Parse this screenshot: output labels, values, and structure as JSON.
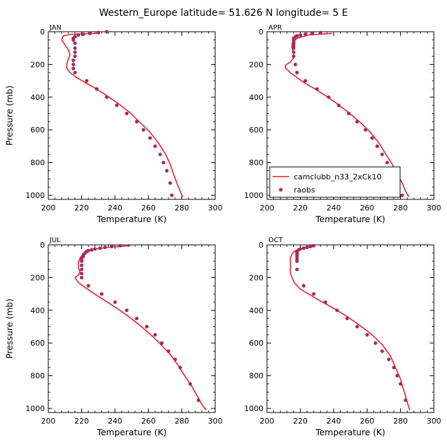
{
  "title": "Western_Europe  latitude= 51.626 N longitude= 5 E",
  "colors": {
    "model": "#e8141c",
    "obs": "#a82a60",
    "axis": "#000000"
  },
  "chart_data": [
    {
      "type": "line",
      "panel_label": "JAN",
      "xlabel": "Temperature (K)",
      "ylabel": "Pressure (mb)",
      "xlim": [
        200,
        300
      ],
      "ylim": [
        1025,
        0
      ],
      "xticks": [
        "200",
        "220",
        "240",
        "260",
        "280",
        "300"
      ],
      "yticks": [
        "0",
        "200",
        "400",
        "600",
        "800",
        "1000"
      ],
      "series": [
        {
          "kind": "line",
          "x": [
            231,
            214,
            209,
            208,
            210,
            212,
            213,
            212,
            211,
            211,
            213,
            217,
            222,
            228,
            235,
            242,
            249,
            255,
            261,
            266,
            270,
            273,
            275,
            277,
            279,
            280.5
          ],
          "y": [
            10,
            15,
            25,
            50,
            80,
            110,
            140,
            170,
            200,
            220,
            250,
            280,
            310,
            345,
            390,
            440,
            495,
            555,
            615,
            680,
            745,
            810,
            870,
            925,
            975,
            1010
          ]
        },
        {
          "kind": "points",
          "x": [
            235,
            230,
            225,
            221,
            218,
            216,
            215,
            215,
            216,
            216,
            216,
            216,
            215,
            215,
            215,
            216,
            223,
            229,
            235,
            241,
            247,
            253,
            257,
            261,
            264,
            267,
            269,
            271,
            273,
            274
          ],
          "y": [
            0,
            5,
            10,
            15,
            20,
            30,
            40,
            50,
            70,
            100,
            125,
            150,
            175,
            200,
            225,
            250,
            300,
            350,
            400,
            450,
            500,
            550,
            600,
            650,
            700,
            750,
            800,
            850,
            925,
            1000
          ]
        }
      ]
    },
    {
      "type": "line",
      "panel_label": "APR",
      "xlabel": "Temperature (K)",
      "ylabel": "",
      "xlim": [
        200,
        300
      ],
      "ylim": [
        1025,
        0
      ],
      "xticks": [
        "200",
        "220",
        "240",
        "260",
        "280",
        "300"
      ],
      "yticks": [
        "0",
        "200",
        "400",
        "600",
        "800",
        "1000"
      ],
      "legend": {
        "position": "lower-left",
        "entries": [
          "camclubb_n33_2xCk10",
          "raobs"
        ]
      },
      "series": [
        {
          "name": "camclubb_n33_2xCk10",
          "kind": "line",
          "x": [
            239,
            225,
            218,
            215,
            215,
            216,
            216,
            214,
            211,
            211,
            214,
            218,
            222,
            228,
            235,
            242,
            249,
            256,
            262,
            267,
            271,
            275,
            278,
            281,
            283,
            285
          ],
          "y": [
            10,
            20,
            40,
            70,
            100,
            130,
            160,
            185,
            205,
            220,
            250,
            280,
            310,
            345,
            390,
            440,
            495,
            555,
            615,
            680,
            745,
            810,
            870,
            925,
            975,
            1010
          ]
        },
        {
          "name": "raobs",
          "kind": "points",
          "x": [
            232,
            227,
            223,
            220,
            218,
            217,
            216,
            216,
            216,
            216,
            216,
            216,
            216,
            216,
            217,
            218,
            223,
            230,
            237,
            243,
            249,
            254,
            259,
            263,
            266,
            269,
            272,
            274,
            278,
            281
          ],
          "y": [
            5,
            10,
            15,
            20,
            25,
            30,
            40,
            50,
            60,
            70,
            85,
            100,
            125,
            150,
            200,
            250,
            300,
            350,
            400,
            450,
            500,
            550,
            600,
            650,
            700,
            750,
            800,
            850,
            925,
            1000
          ]
        }
      ]
    },
    {
      "type": "line",
      "panel_label": "JUL",
      "xlabel": "Temperature (K)",
      "ylabel": "Pressure (mb)",
      "xlim": [
        200,
        300
      ],
      "ylim": [
        1025,
        0
      ],
      "xticks": [
        "200",
        "220",
        "240",
        "260",
        "280",
        "300"
      ],
      "yticks": [
        "0",
        "200",
        "400",
        "600",
        "800",
        "1000"
      ],
      "series": [
        {
          "kind": "line",
          "x": [
            249,
            235,
            226,
            221,
            219,
            218,
            218,
            219,
            218,
            216,
            218,
            222,
            227,
            233,
            240,
            247,
            254,
            261,
            267,
            273,
            278,
            282,
            286,
            289,
            292,
            294.5
          ],
          "y": [
            5,
            15,
            30,
            55,
            80,
            110,
            140,
            165,
            185,
            200,
            230,
            260,
            295,
            335,
            380,
            430,
            485,
            545,
            605,
            670,
            740,
            805,
            865,
            920,
            975,
            1010
          ]
        },
        {
          "kind": "points",
          "x": [
            243,
            238,
            234,
            231,
            228,
            226,
            224,
            223,
            222,
            221,
            221,
            220,
            220,
            220,
            220,
            220,
            220,
            224,
            232,
            240,
            247,
            253,
            259,
            264,
            268,
            272,
            276,
            279,
            285,
            290
          ],
          "y": [
            5,
            10,
            15,
            20,
            25,
            30,
            35,
            40,
            50,
            60,
            70,
            85,
            100,
            125,
            150,
            175,
            200,
            250,
            300,
            350,
            400,
            450,
            500,
            550,
            600,
            650,
            700,
            750,
            850,
            950
          ]
        }
      ]
    },
    {
      "type": "line",
      "panel_label": "OCT",
      "xlabel": "Temperature (K)",
      "ylabel": "",
      "xlim": [
        200,
        300
      ],
      "ylim": [
        1025,
        0
      ],
      "xticks": [
        "200",
        "220",
        "240",
        "260",
        "280",
        "300"
      ],
      "yticks": [
        "0",
        "200",
        "400",
        "600",
        "800",
        "1000"
      ],
      "series": [
        {
          "kind": "line",
          "x": [
            228,
            222,
            217,
            215,
            214,
            214,
            214,
            214,
            215,
            216,
            218,
            220,
            224,
            229,
            235,
            242,
            249,
            256,
            263,
            269,
            274,
            277,
            280,
            282,
            284,
            285.5
          ],
          "y": [
            10,
            20,
            35,
            55,
            80,
            110,
            140,
            170,
            200,
            225,
            250,
            270,
            295,
            325,
            360,
            400,
            445,
            495,
            550,
            610,
            680,
            750,
            820,
            890,
            960,
            1010
          ]
        },
        {
          "kind": "points",
          "x": [
            228,
            226,
            224,
            222,
            220,
            219,
            218,
            218,
            218,
            218,
            218,
            218,
            218,
            222,
            228,
            235,
            242,
            248,
            254,
            260,
            265,
            269,
            273,
            276,
            278,
            280,
            283
          ],
          "y": [
            5,
            10,
            15,
            20,
            25,
            30,
            40,
            50,
            60,
            70,
            85,
            100,
            150,
            250,
            300,
            350,
            400,
            450,
            500,
            550,
            600,
            650,
            700,
            750,
            800,
            850,
            950
          ]
        }
      ]
    }
  ]
}
